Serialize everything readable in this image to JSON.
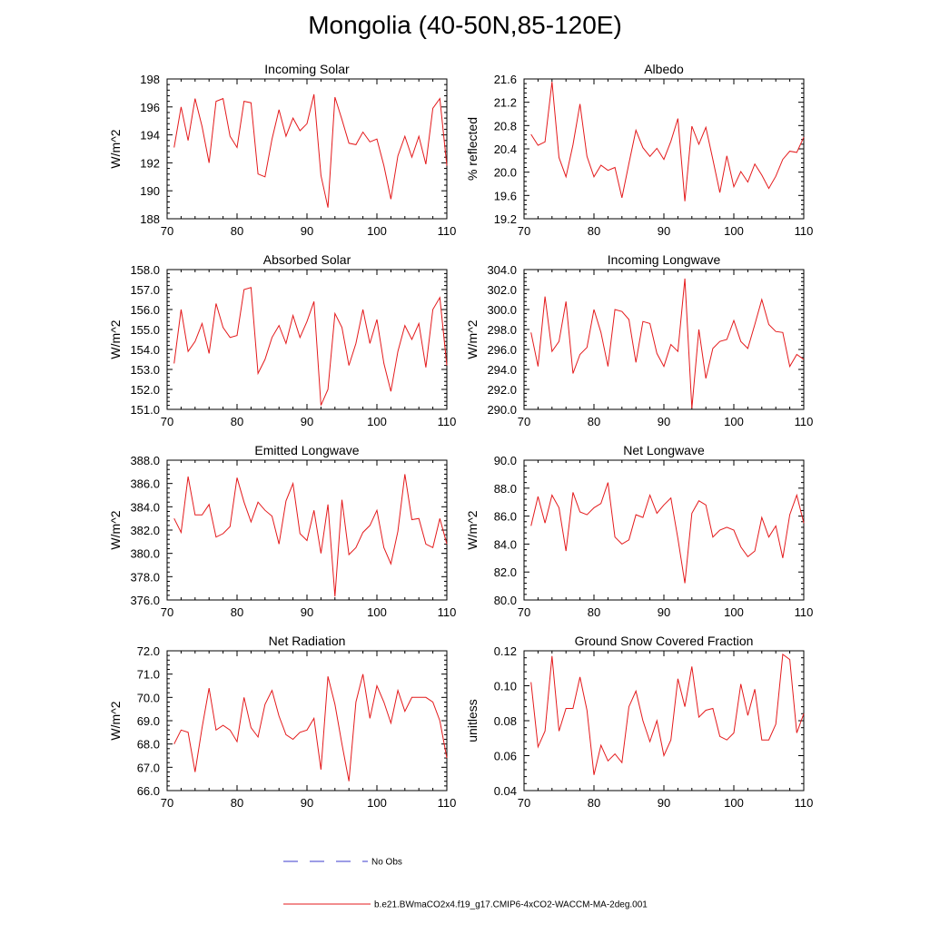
{
  "figure": {
    "title": "Mongolia (40-50N,85-120E)",
    "legend": [
      {
        "label": "No Obs",
        "color": "#3b3bcc",
        "dash": true
      },
      {
        "label": "b.e21.BWmaCO2x4.f19_g17.CMIP6-4xCO2-WACCM-MA-2deg.001",
        "color": "#e41a1c",
        "dash": false
      }
    ]
  },
  "chart_data": [
    {
      "type": "line",
      "title": "Incoming Solar",
      "ylabel": "W/m^2",
      "xlabel": "",
      "xlim": [
        70,
        110
      ],
      "ylim": [
        188,
        198
      ],
      "xticks": [
        70,
        80,
        90,
        100,
        110
      ],
      "yticks": [
        188,
        190,
        192,
        194,
        196,
        198
      ],
      "ytick_decimals": 0,
      "series": [
        {
          "name": "b.e21.BWmaCO2x4.f19_g17.CMIP6-4xCO2-WACCM-MA-2deg.001",
          "color": "#e41a1c",
          "x": [
            71,
            72,
            73,
            74,
            75,
            76,
            77,
            78,
            79,
            80,
            81,
            82,
            83,
            84,
            85,
            86,
            87,
            88,
            89,
            90,
            91,
            92,
            93,
            94,
            95,
            96,
            97,
            98,
            99,
            100,
            101,
            102,
            103,
            104,
            105,
            106,
            107,
            108,
            109,
            110
          ],
          "y": [
            193.1,
            196.0,
            193.6,
            196.6,
            194.6,
            192.0,
            196.4,
            196.6,
            193.9,
            193.1,
            196.4,
            196.3,
            191.2,
            191.0,
            193.7,
            195.8,
            193.9,
            195.2,
            194.3,
            194.8,
            196.9,
            191.1,
            188.8,
            196.7,
            195.1,
            193.4,
            193.3,
            194.2,
            193.5,
            193.7,
            191.8,
            189.4,
            192.5,
            193.9,
            192.4,
            193.9,
            191.9,
            195.9,
            196.6,
            191.8
          ]
        }
      ]
    },
    {
      "type": "line",
      "title": "Albedo",
      "ylabel": "% reflected",
      "xlabel": "",
      "xlim": [
        70,
        110
      ],
      "ylim": [
        19.2,
        21.6
      ],
      "xticks": [
        70,
        80,
        90,
        100,
        110
      ],
      "yticks": [
        19.2,
        19.6,
        20.0,
        20.4,
        20.8,
        21.2,
        21.6
      ],
      "ytick_decimals": 1,
      "series": [
        {
          "name": "b.e21.BWmaCO2x4.f19_g17.CMIP6-4xCO2-WACCM-MA-2deg.001",
          "color": "#e41a1c",
          "x": [
            71,
            72,
            73,
            74,
            75,
            76,
            77,
            78,
            79,
            80,
            81,
            82,
            83,
            84,
            85,
            86,
            87,
            88,
            89,
            90,
            91,
            92,
            93,
            94,
            95,
            96,
            97,
            98,
            99,
            100,
            101,
            102,
            103,
            104,
            105,
            106,
            107,
            108,
            109,
            110
          ],
          "y": [
            20.65,
            20.46,
            20.52,
            21.55,
            20.25,
            19.92,
            20.47,
            21.17,
            20.27,
            19.92,
            20.12,
            20.03,
            20.08,
            19.56,
            20.15,
            20.72,
            20.42,
            20.27,
            20.41,
            20.22,
            20.53,
            20.92,
            19.5,
            20.79,
            20.48,
            20.77,
            20.22,
            19.65,
            20.28,
            19.75,
            20.01,
            19.83,
            20.14,
            19.95,
            19.72,
            19.93,
            20.22,
            20.36,
            20.34,
            20.6
          ]
        }
      ]
    },
    {
      "type": "line",
      "title": "Absorbed Solar",
      "ylabel": "W/m^2",
      "xlabel": "",
      "xlim": [
        70,
        110
      ],
      "ylim": [
        151.0,
        158.0
      ],
      "xticks": [
        70,
        80,
        90,
        100,
        110
      ],
      "yticks": [
        151,
        152,
        153,
        154,
        155,
        156,
        157,
        158
      ],
      "ytick_decimals": 1,
      "series": [
        {
          "name": "b.e21.BWmaCO2x4.f19_g17.CMIP6-4xCO2-WACCM-MA-2deg.001",
          "color": "#e41a1c",
          "x": [
            71,
            72,
            73,
            74,
            75,
            76,
            77,
            78,
            79,
            80,
            81,
            82,
            83,
            84,
            85,
            86,
            87,
            88,
            89,
            90,
            91,
            92,
            93,
            94,
            95,
            96,
            97,
            98,
            99,
            100,
            101,
            102,
            103,
            104,
            105,
            106,
            107,
            108,
            109,
            110
          ],
          "y": [
            153.3,
            156.0,
            153.9,
            154.4,
            155.3,
            153.8,
            156.3,
            155.1,
            154.6,
            154.7,
            157.0,
            157.1,
            152.8,
            153.5,
            154.6,
            155.2,
            154.3,
            155.7,
            154.6,
            155.4,
            156.4,
            151.2,
            152.0,
            155.8,
            155.1,
            153.2,
            154.3,
            156.0,
            154.3,
            155.5,
            153.3,
            151.9,
            153.9,
            155.2,
            154.5,
            155.3,
            153.1,
            156.0,
            156.6,
            153.2
          ]
        }
      ]
    },
    {
      "type": "line",
      "title": "Incoming Longwave",
      "ylabel": "W/m^2",
      "xlabel": "",
      "xlim": [
        70,
        110
      ],
      "ylim": [
        290.0,
        304.0
      ],
      "xticks": [
        70,
        80,
        90,
        100,
        110
      ],
      "yticks": [
        290,
        292,
        294,
        296,
        298,
        300,
        302,
        304
      ],
      "ytick_decimals": 1,
      "series": [
        {
          "name": "b.e21.BWmaCO2x4.f19_g17.CMIP6-4xCO2-WACCM-MA-2deg.001",
          "color": "#e41a1c",
          "x": [
            71,
            72,
            73,
            74,
            75,
            76,
            77,
            78,
            79,
            80,
            81,
            82,
            83,
            84,
            85,
            86,
            87,
            88,
            89,
            90,
            91,
            92,
            93,
            94,
            95,
            96,
            97,
            98,
            99,
            100,
            101,
            102,
            103,
            104,
            105,
            106,
            107,
            108,
            109,
            110
          ],
          "y": [
            297.7,
            294.3,
            301.3,
            295.8,
            296.8,
            300.8,
            293.6,
            295.5,
            296.2,
            300.0,
            297.7,
            294.3,
            300.0,
            299.8,
            299.0,
            294.7,
            298.8,
            298.6,
            295.6,
            294.3,
            296.5,
            295.8,
            303.1,
            290.1,
            298.0,
            293.1,
            296.1,
            296.8,
            297.0,
            298.9,
            296.8,
            296.1,
            298.5,
            301.0,
            298.5,
            297.8,
            297.7,
            294.3,
            295.5,
            295.0
          ]
        }
      ]
    },
    {
      "type": "line",
      "title": "Emitted Longwave",
      "ylabel": "W/m^2",
      "xlabel": "",
      "xlim": [
        70,
        110
      ],
      "ylim": [
        376.0,
        388.0
      ],
      "xticks": [
        70,
        80,
        90,
        100,
        110
      ],
      "yticks": [
        376,
        378,
        380,
        382,
        384,
        386,
        388
      ],
      "ytick_decimals": 1,
      "series": [
        {
          "name": "b.e21.BWmaCO2x4.f19_g17.CMIP6-4xCO2-WACCM-MA-2deg.001",
          "color": "#e41a1c",
          "x": [
            71,
            72,
            73,
            74,
            75,
            76,
            77,
            78,
            79,
            80,
            81,
            82,
            83,
            84,
            85,
            86,
            87,
            88,
            89,
            90,
            91,
            92,
            93,
            94,
            95,
            96,
            97,
            98,
            99,
            100,
            101,
            102,
            103,
            104,
            105,
            106,
            107,
            108,
            109,
            110
          ],
          "y": [
            383.0,
            381.8,
            386.6,
            383.3,
            383.3,
            384.2,
            381.4,
            381.7,
            382.3,
            386.5,
            384.4,
            382.7,
            384.4,
            383.7,
            383.2,
            380.8,
            384.5,
            386.0,
            381.7,
            381.1,
            383.7,
            380.0,
            384.2,
            376.3,
            384.6,
            379.9,
            380.5,
            381.8,
            382.4,
            383.7,
            380.5,
            379.1,
            381.9,
            386.8,
            382.9,
            383.0,
            380.8,
            380.5,
            383.0,
            380.8
          ]
        }
      ]
    },
    {
      "type": "line",
      "title": "Net Longwave",
      "ylabel": "W/m^2",
      "xlabel": "",
      "xlim": [
        70,
        110
      ],
      "ylim": [
        80.0,
        90.0
      ],
      "xticks": [
        70,
        80,
        90,
        100,
        110
      ],
      "yticks": [
        80,
        82,
        84,
        86,
        88,
        90
      ],
      "ytick_decimals": 1,
      "series": [
        {
          "name": "b.e21.BWmaCO2x4.f19_g17.CMIP6-4xCO2-WACCM-MA-2deg.001",
          "color": "#e41a1c",
          "x": [
            71,
            72,
            73,
            74,
            75,
            76,
            77,
            78,
            79,
            80,
            81,
            82,
            83,
            84,
            85,
            86,
            87,
            88,
            89,
            90,
            91,
            92,
            93,
            94,
            95,
            96,
            97,
            98,
            99,
            100,
            101,
            102,
            103,
            104,
            105,
            106,
            107,
            108,
            109,
            110
          ],
          "y": [
            85.3,
            87.4,
            85.5,
            87.5,
            86.6,
            83.5,
            87.7,
            86.3,
            86.1,
            86.6,
            86.9,
            88.4,
            84.5,
            84.0,
            84.3,
            86.1,
            85.9,
            87.5,
            86.2,
            86.8,
            87.3,
            84.4,
            81.2,
            86.2,
            87.1,
            86.8,
            84.5,
            85.0,
            85.2,
            85.0,
            83.8,
            83.1,
            83.5,
            85.9,
            84.5,
            85.3,
            83.0,
            86.1,
            87.5,
            85.5
          ]
        }
      ]
    },
    {
      "type": "line",
      "title": "Net Radiation",
      "ylabel": "W/m^2",
      "xlabel": "",
      "xlim": [
        70,
        110
      ],
      "ylim": [
        66.0,
        72.0
      ],
      "xticks": [
        70,
        80,
        90,
        100,
        110
      ],
      "yticks": [
        66,
        67,
        68,
        69,
        70,
        71,
        72
      ],
      "ytick_decimals": 1,
      "series": [
        {
          "name": "b.e21.BWmaCO2x4.f19_g17.CMIP6-4xCO2-WACCM-MA-2deg.001",
          "color": "#e41a1c",
          "x": [
            71,
            72,
            73,
            74,
            75,
            76,
            77,
            78,
            79,
            80,
            81,
            82,
            83,
            84,
            85,
            86,
            87,
            88,
            89,
            90,
            91,
            92,
            93,
            94,
            95,
            96,
            97,
            98,
            99,
            100,
            101,
            102,
            103,
            104,
            105,
            106,
            107,
            108,
            109,
            110
          ],
          "y": [
            68.0,
            68.6,
            68.5,
            66.8,
            68.7,
            70.4,
            68.6,
            68.8,
            68.6,
            68.1,
            70.0,
            68.7,
            68.3,
            69.7,
            70.3,
            69.2,
            68.4,
            68.2,
            68.5,
            68.6,
            69.1,
            66.9,
            70.9,
            69.7,
            68.0,
            66.4,
            69.8,
            71.0,
            69.1,
            70.5,
            69.8,
            68.9,
            70.3,
            69.4,
            70.0,
            70.0,
            70.0,
            69.8,
            69.0,
            67.4
          ]
        }
      ]
    },
    {
      "type": "line",
      "title": "Ground Snow Covered Fraction",
      "ylabel": "unitless",
      "xlabel": "",
      "xlim": [
        70,
        110
      ],
      "ylim": [
        0.04,
        0.12
      ],
      "xticks": [
        70,
        80,
        90,
        100,
        110
      ],
      "yticks": [
        0.04,
        0.06,
        0.08,
        0.1,
        0.12
      ],
      "ytick_decimals": 2,
      "series": [
        {
          "name": "b.e21.BWmaCO2x4.f19_g17.CMIP6-4xCO2-WACCM-MA-2deg.001",
          "color": "#e41a1c",
          "x": [
            71,
            72,
            73,
            74,
            75,
            76,
            77,
            78,
            79,
            80,
            81,
            82,
            83,
            84,
            85,
            86,
            87,
            88,
            89,
            90,
            91,
            92,
            93,
            94,
            95,
            96,
            97,
            98,
            99,
            100,
            101,
            102,
            103,
            104,
            105,
            106,
            107,
            108,
            109,
            110
          ],
          "y": [
            0.102,
            0.065,
            0.074,
            0.117,
            0.074,
            0.087,
            0.087,
            0.105,
            0.086,
            0.049,
            0.066,
            0.057,
            0.061,
            0.056,
            0.088,
            0.097,
            0.08,
            0.068,
            0.08,
            0.06,
            0.069,
            0.104,
            0.088,
            0.111,
            0.082,
            0.086,
            0.087,
            0.071,
            0.069,
            0.073,
            0.101,
            0.083,
            0.098,
            0.069,
            0.069,
            0.078,
            0.118,
            0.115,
            0.073,
            0.084
          ]
        }
      ]
    }
  ]
}
